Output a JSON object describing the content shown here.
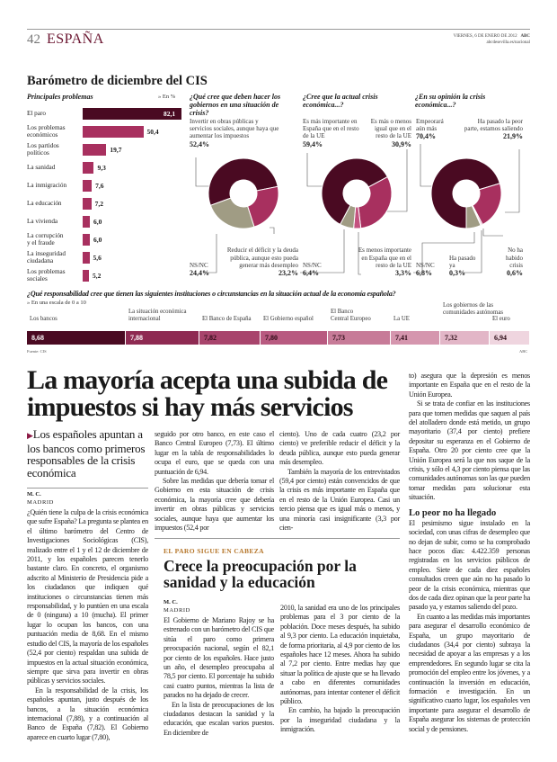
{
  "header": {
    "page_number": "42",
    "section": "ESPAÑA",
    "date": "VIERNES, 6 DE ENERO DE 2012",
    "brand": "ABC",
    "web": "abcdesevilla.es/nacional"
  },
  "infographic": {
    "title": "Barómetro de diciembre del CIS",
    "source": "Fuente: CIS",
    "credit": "ABC"
  },
  "chart_data": [
    {
      "type": "bar",
      "title": "Principales problemas",
      "unit_label": "» En %",
      "categories": [
        "El paro",
        "Los problemas\neconómicos",
        "Los partidos\npolíticos",
        "La sanidad",
        "La inmigración",
        "La educación",
        "La vivienda",
        "La corrupción\ny el fraude",
        "La inseguridad\nciudadana",
        "Los problemas\nsociales"
      ],
      "values": [
        82.1,
        50.4,
        19.7,
        9.3,
        7.6,
        7.2,
        6.0,
        6.0,
        5.6,
        5.2
      ],
      "value_labels": [
        "82,1",
        "50,4",
        "19,7",
        "9,3",
        "7,6",
        "7,2",
        "6,0",
        "6,0",
        "5,6",
        "5,2"
      ]
    },
    {
      "type": "pie",
      "title": "¿Qué cree que deben hacer los gobiernos en una situación de crisis?",
      "slices": [
        {
          "label": "Invertir en obras públicas y servicios sociales, aunque haya que aumentar los impuestos",
          "value": 52.4,
          "value_label": "52,4%",
          "color": "#4a0a22"
        },
        {
          "label": "Reducir el déficit y la deuda pública, aunque esto pueda generar más desempleo",
          "value": 23.2,
          "value_label": "23,2%",
          "color": "#a8305f"
        },
        {
          "label": "NS/NC",
          "value": 24.4,
          "value_label": "24,4%",
          "color": "#a09c84"
        }
      ]
    },
    {
      "type": "pie",
      "title": "¿Cree que la actual crisis económica...?",
      "slices": [
        {
          "label": "Es más importante en España que en el resto de la UE",
          "value": 59.4,
          "value_label": "59,4%",
          "color": "#4a0a22"
        },
        {
          "label": "Es más o menos igual que en el resto de la UE",
          "value": 30.9,
          "value_label": "30,9%",
          "color": "#a8305f"
        },
        {
          "label": "Es menos importante en España que en el resto de la UE",
          "value": 3.3,
          "value_label": "3,3%",
          "color": "#c4527f"
        },
        {
          "label": "NS/NC",
          "value": 6.4,
          "value_label": "6,4%",
          "color": "#a09c84"
        }
      ]
    },
    {
      "type": "pie",
      "title": "¿En su opinión la crisis económica...?",
      "slices": [
        {
          "label": "Empeorará aún más",
          "value": 70.4,
          "value_label": "70,4%",
          "color": "#4a0a22"
        },
        {
          "label": "Ha pasado la peor parte, estamos saliendo",
          "value": 21.9,
          "value_label": "21,9%",
          "color": "#a8305f"
        },
        {
          "label": "No ha habido crisis",
          "value": 0.6,
          "value_label": "0,6%",
          "color": "#c4527f"
        },
        {
          "label": "Ha pasado ya",
          "value": 0.3,
          "value_label": "0,3%",
          "color": "#7a1a40"
        },
        {
          "label": "NS/NC",
          "value": 6.8,
          "value_label": "6,8%",
          "color": "#a09c84"
        }
      ]
    },
    {
      "type": "table",
      "title": "¿Qué responsabilidad cree que tienen las siguientes instituciones o circunstancias en la situación actual de la economía española?",
      "subtitle": "» En una escala de 0 a 10",
      "scale": [
        0,
        10
      ],
      "categories": [
        "Los bancos",
        "La situación económica\ninternacional",
        "El Banco de España",
        "El Gobierno español",
        "El Banco\nCentral Europeo",
        "La UE",
        "Los gobiernos de las\ncomunidades autónomas",
        "El euro"
      ],
      "values": [
        8.68,
        7.88,
        7.82,
        7.8,
        7.73,
        7.41,
        7.32,
        6.94
      ],
      "value_labels": [
        "8,68",
        "7,88",
        "7,82",
        "7,80",
        "7,73",
        "7,41",
        "7,32",
        "6,94"
      ],
      "colors": [
        "#4a0a22",
        "#8e2a52",
        "#a8446c",
        "#b85a80",
        "#c77b98",
        "#d596ae",
        "#e2b6c7",
        "#efd5df"
      ]
    }
  ],
  "article": {
    "headline": "La mayoría acepta una subida de impuestos si hay más servicios",
    "subtitle": "Los españoles apuntan a los bancos como primeros responsables de la crisis económica",
    "author": "M. C.",
    "place": "MADRID",
    "col1": [
      "¿Quién tiene la culpa de la crisis económica que sufre España? La pregunta se plantea en el último barómetro del Centro de Investigaciones Sociológicas (CIS), realizado entre el 1 y el 12 de diciembre de 2011, y los españoles parecen tenerlo bastante claro. En concreto, el organismo adscrito al Ministerio de Presidencia pide a los ciudadanos que indiquen qué instituciones o circunstancias tienen más responsabilidad, y lo puntúen en una escala de 0 (ninguna) a 10 (mucha). El primer lugar lo ocupan los bancos, con una puntuación media de 8,68. En el mismo estudio del CIS, la mayoría de los españoles (52,4 por ciento) respaldan una subida de impuestos en la actual situación económica, siempre que sirva para invertir en obras públicas y servicios sociales.",
      "En la responsabilidad de la crisis, los españoles apuntan, justo después de los bancos, a la situación económica internacional (7,88), y a continuación al Banco de España (7,82). El Gobierno aparece en cuarto lugar (7,80),"
    ],
    "col2": [
      "seguido por otro banco, en este caso el Banco Central Europeo (7,73). El último lugar en la tabla de responsabilidades lo ocupa el euro, que se queda con una puntuación de 6,94.",
      "Sobre las medidas que debería tomar el Gobierno en esta situación de crisis económica, la mayoría cree que debería invertir en obras públicas y servicios sociales, aunque haya que aumentar los impuestos (52,4 por"
    ],
    "col3": [
      "ciento). Uno de cada cuatro (23,2 por ciento) ve preferible reducir el déficit y la deuda pública, aunque esto pueda generar más desempleo.",
      "También la mayoría de los entrevistados (59,4 por ciento) están convencidos de que la crisis es más importante en España que en el resto de la Unión Europea. Casi un tercio piensa que es igual más o menos, y una minoría casi insignificante (3,3 por cien-"
    ],
    "col4": [
      "to) asegura que la depresión es menos importante en España que en el resto de la Unión Europea.",
      "Si se trata de confiar en las instituciones para que tomen medidas que saquen al país del atolladero donde está metido, un grupo mayoritario (37,4 por ciento) prefiere depositar su esperanza en el Gobierno de España. Otro 20 por ciento cree que la Unión Europea será la que nos saque de la crisis, y sólo el 4,3 por ciento piensa que las comunidades autónomas son las que pueden tomar medidas para solucionar esta situación."
    ],
    "subhead": "Lo peor no ha llegado",
    "col4b": [
      "El pesimismo sigue instalado en la sociedad, con unas cifras de desempleo que no dejan de subir, como se ha comprobado hace pocos días: 4.422.359 personas registradas en los servicios públicos de empleo. Siete de cada diez españoles consultados creen que aún no ha pasado lo peor de la crisis económica, mientras que dos de cada diez opinan que la peor parte ha pasado ya, y estamos saliendo del pozo.",
      "En cuanto a las medidas más importantes para asegurar el desarrollo económico de España, un grupo mayoritario de ciudadanos (34,4 por ciento) subraya la necesidad de apoyar a las empresas y a los emprendedores. En segundo lugar se cita la promoción del empleo entre los jóvenes, y a continuación la inversión en educación, formación e investigación. En un significativo cuarto lugar, los españoles ven importante para asegurar el desarrollo de España asegurar los sistemas de protección social y de pensiones."
    ]
  },
  "article2": {
    "kicker": "EL PARO SIGUE EN CABEZA",
    "headline": "Crece la preocupación por la sanidad y la educación",
    "author": "M. C.",
    "place": "MADRID",
    "colA": [
      "El Gobierno de Mariano Rajoy se ha estrenado con un barómetro del CIS que sitúa el paro como primera preocupación nacional, según el 82,1 por ciento de los españoles. Hace justo un año, el desempleo preocupaba al 78,5 por ciento. El porcentaje ha subido casi cuatro puntos, mientras la lista de parados no ha dejado de crecer.",
      "En la lista de preocupaciones de los ciudadanos destacan la sanidad y la educación, que escalan varios puestos. En diciembre de"
    ],
    "colB": [
      "2010, la sanidad era uno de los principales problemas para el 3 por ciento de la población. Doce meses después, ha subido al 9,3 por ciento. La educación inquietaba, de forma prioritaria, al 4,9 por ciento de los españoles hace 12 meses. Ahora ha subido al 7,2 por ciento. Entre medias hay que situar la política de ajuste que se ha llevado a cabo en diferentes comunidades autónomas, para intentar contener el déficit público.",
      "En cambio, ha bajado la preocupación por la inseguridad ciudadana y la inmigración."
    ]
  }
}
